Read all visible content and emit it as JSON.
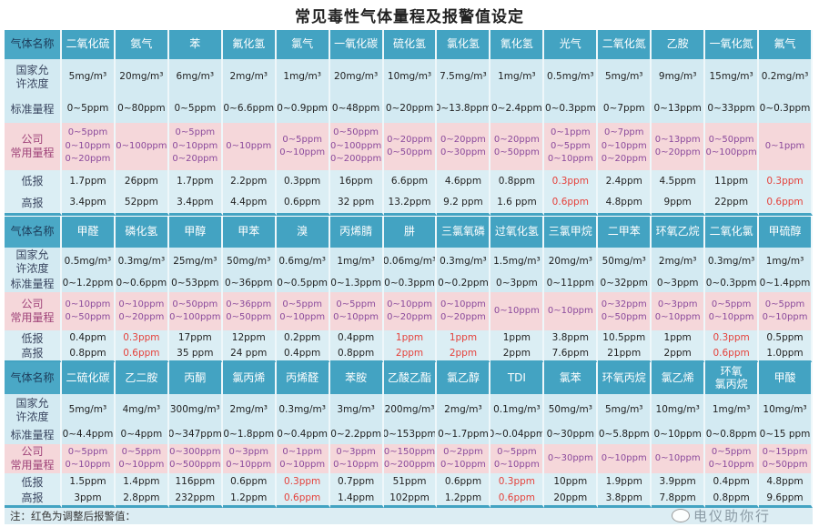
{
  "title": "常见毒性气体量程及报警值设定",
  "row_labels": {
    "name": "气体名称",
    "allowed": "国家允\n许浓度",
    "standard": "标准量程",
    "company": "公司\n常用量程",
    "low": "低报",
    "high": "高报"
  },
  "colors": {
    "header": "#43a3c2",
    "row": "#d3eaf2",
    "company_row": "#f5d7da",
    "company_text": "#8b4a9c",
    "adjusted_alarm": "#e5413b"
  },
  "sections": [
    {
      "gases": [
        {
          "name": "二氧化硫",
          "allowed": "5mg/m³",
          "standard": "0~5ppm",
          "company": [
            "0~5ppm",
            "0~10ppm",
            "0~20ppm"
          ],
          "low": "1.7ppm",
          "high": "3.4ppm",
          "adjusted": false
        },
        {
          "name": "氨气",
          "allowed": "20mg/m³",
          "standard": "0~80ppm",
          "company": [
            "0~100ppm"
          ],
          "low": "26ppm",
          "high": "52ppm",
          "adjusted": false
        },
        {
          "name": "苯",
          "allowed": "6mg/m³",
          "standard": "0~5ppm",
          "company": [
            "0~5ppm",
            "0~10ppm",
            "0~20ppm"
          ],
          "low": "1.7ppm",
          "high": "3.4ppm",
          "adjusted": false
        },
        {
          "name": "氟化氢",
          "allowed": "2mg/m³",
          "standard": "0~6.6ppm",
          "company": [
            "0~10ppm"
          ],
          "low": "2.2ppm",
          "high": "4.4ppm",
          "adjusted": false
        },
        {
          "name": "氯气",
          "allowed": "1mg/m³",
          "standard": "0~0.9ppm",
          "company": [
            "0~5ppm",
            "0~10ppm"
          ],
          "low": "0.3ppm",
          "high": "0.6ppm",
          "adjusted": false
        },
        {
          "name": "一氧化碳",
          "allowed": "20mg/m³",
          "standard": "0~48ppm",
          "company": [
            "0~50ppm",
            "0~100ppm",
            "0~200ppm"
          ],
          "low": "16ppm",
          "high": "32 ppm",
          "adjusted": false
        },
        {
          "name": "硫化氢",
          "allowed": "10mg/m³",
          "standard": "0~20ppm",
          "company": [
            "0~20ppm",
            "0~50ppm"
          ],
          "low": "6.6ppm",
          "high": "13.2ppm",
          "adjusted": false
        },
        {
          "name": "氯化氢",
          "allowed": "7.5mg/m³",
          "standard": "0~13.8ppm",
          "company": [
            "0~20ppm",
            "0~30ppm"
          ],
          "low": "4.6ppm",
          "high": "9.2 ppm",
          "adjusted": false
        },
        {
          "name": "氰化氢",
          "allowed": "1mg/m³",
          "standard": "0~2.4ppm",
          "company": [
            "0~20ppm",
            "0~50ppm"
          ],
          "low": "0.8ppm",
          "high": "1.6 ppm",
          "adjusted": false
        },
        {
          "name": "光气",
          "allowed": "0.5mg/m³",
          "standard": "0~0.3ppm",
          "company": [
            "0~1ppm",
            "0~5ppm",
            "0~10ppm"
          ],
          "low": "0.3ppm",
          "high": "0.6ppm",
          "adjusted": true
        },
        {
          "name": "二氧化氮",
          "allowed": "5mg/m³",
          "standard": "0~7ppm",
          "company": [
            "0~7ppm",
            "0~10ppm",
            "0~20ppm"
          ],
          "low": "2.4ppm",
          "high": "4.8ppm",
          "adjusted": false
        },
        {
          "name": "乙胺",
          "allowed": "9mg/m³",
          "standard": "0~13ppm",
          "company": [
            "0~13ppm",
            "0~20ppm"
          ],
          "low": "4.5ppm",
          "high": "9ppm",
          "adjusted": false
        },
        {
          "name": "一氧化氮",
          "allowed": "15mg/m³",
          "standard": "0~33ppm",
          "company": [
            "0~50ppm",
            "0~100ppm"
          ],
          "low": "11ppm",
          "high": "22ppm",
          "adjusted": false
        },
        {
          "name": "氟气",
          "allowed": "0.2mg/m³",
          "standard": "0~0.3ppm",
          "company": [
            "0~1ppm"
          ],
          "low": "0.3ppm",
          "high": "0.6ppm",
          "adjusted": true
        }
      ]
    },
    {
      "gases": [
        {
          "name": "甲醛",
          "allowed": "0.5mg/m³",
          "standard": "0~1.2ppm",
          "company": [
            "0~10ppm",
            "0~50ppm"
          ],
          "low": "0.4ppm",
          "high": "0.8ppm",
          "adjusted": false
        },
        {
          "name": "磷化氢",
          "allowed": "0.3mg/m³",
          "standard": "0~0.6ppm",
          "company": [
            "0~10ppm",
            "0~20ppm"
          ],
          "low": "0.3ppm",
          "high": "0.6ppm",
          "adjusted": true
        },
        {
          "name": "甲醇",
          "allowed": "25mg/m³",
          "standard": "0~53ppm",
          "company": [
            "0~50ppm",
            "0~100ppm"
          ],
          "low": "17ppm",
          "high": "35 ppm",
          "adjusted": false
        },
        {
          "name": "甲苯",
          "allowed": "50mg/m³",
          "standard": "0~36ppm",
          "company": [
            "0~36ppm",
            "0~50ppm"
          ],
          "low": "12ppm",
          "high": "24 ppm",
          "adjusted": false
        },
        {
          "name": "溴",
          "allowed": "0.6mg/m³",
          "standard": "0~0.5ppm",
          "company": [
            "0~5ppm",
            "0~10ppm"
          ],
          "low": "0.2ppm",
          "high": "0.4ppm",
          "adjusted": false
        },
        {
          "name": "丙烯腈",
          "allowed": "1mg/m³",
          "standard": "0~1.3ppm",
          "company": [
            "0~5ppm",
            "0~10ppm"
          ],
          "low": "0.4ppm",
          "high": "0.8ppm",
          "adjusted": false
        },
        {
          "name": "肼",
          "allowed": "0.06mg/m³",
          "standard": "0~0.3ppm",
          "company": [
            "0~10ppm",
            "0~20ppm"
          ],
          "low": "1ppm",
          "high": "2ppm",
          "adjusted": true
        },
        {
          "name": "三氯氧磷",
          "allowed": "0.3mg/m³",
          "standard": "0~0.2ppm",
          "company": [
            "0~10ppm",
            "0~20ppm"
          ],
          "low": "1ppm",
          "high": "2ppm",
          "adjusted": true
        },
        {
          "name": "过氧化氢",
          "allowed": "1.5mg/m³",
          "standard": "0~3ppm",
          "company": [
            "0~10ppm"
          ],
          "low": "1ppm",
          "high": "2ppm",
          "adjusted": false
        },
        {
          "name": "三氯甲烷",
          "allowed": "20mg/m³",
          "standard": "0~11ppm",
          "company": [
            "0~10ppm"
          ],
          "low": "3.8ppm",
          "high": "7.6ppm",
          "adjusted": false
        },
        {
          "name": "二甲苯",
          "allowed": "50mg/m³",
          "standard": "0~32ppm",
          "company": [
            "0~32ppm",
            "0~50ppm"
          ],
          "low": "10.5ppm",
          "high": "21ppm",
          "adjusted": false
        },
        {
          "name": "环氧乙烷",
          "allowed": "2mg/m³",
          "standard": "0~3ppm",
          "company": [
            "0~3ppm",
            "0~10ppm"
          ],
          "low": "1ppm",
          "high": "2ppm",
          "adjusted": false
        },
        {
          "name": "二氧化氯",
          "allowed": "0.3mg/m³",
          "standard": "0~0.3ppm",
          "company": [
            "0~5ppm",
            "0~10ppm"
          ],
          "low": "0.3ppm",
          "high": "0.6ppm",
          "adjusted": true
        },
        {
          "name": "甲硫醇",
          "allowed": "1mg/m³",
          "standard": "0~1.4ppm",
          "company": [
            "0~5ppm",
            "0~10ppm"
          ],
          "low": "0.5ppm",
          "high": "1.0ppm",
          "adjusted": false
        }
      ]
    },
    {
      "gases": [
        {
          "name": "二硫化碳",
          "allowed": "5mg/m³",
          "standard": "0~4.4ppm",
          "company": [
            "0~5ppm",
            "0~10ppm"
          ],
          "low": "1.5ppm",
          "high": "3ppm",
          "adjusted": false
        },
        {
          "name": "乙二胺",
          "allowed": "4mg/m³",
          "standard": "0~4ppm",
          "company": [
            "0~5ppm",
            "0~10ppm"
          ],
          "low": "1.4ppm",
          "high": "2.8ppm",
          "adjusted": false
        },
        {
          "name": "丙酮",
          "allowed": "300mg/m³",
          "standard": "0~347ppm",
          "company": [
            "0~300ppm",
            "0~500ppm"
          ],
          "low": "116ppm",
          "high": "232ppm",
          "adjusted": false
        },
        {
          "name": "氯丙烯",
          "allowed": "2mg/m³",
          "standard": "0~1.8ppm",
          "company": [
            "0~3ppm",
            "0~10ppm"
          ],
          "low": "0.6ppm",
          "high": "1.2ppm",
          "adjusted": false
        },
        {
          "name": "丙烯醛",
          "allowed": "0.3mg/m³",
          "standard": "0~0.4ppm",
          "company": [
            "0~1ppm",
            "0~10ppm"
          ],
          "low": "0.3ppm",
          "high": "0.6ppm",
          "adjusted": true
        },
        {
          "name": "苯胺",
          "allowed": "3mg/m³",
          "standard": "0~2.2ppm",
          "company": [
            "0~3ppm",
            "0~10ppm"
          ],
          "low": "0.7ppm",
          "high": "1.4ppm",
          "adjusted": false
        },
        {
          "name": "乙酸乙酯",
          "allowed": "200mg/m³",
          "standard": "0~153ppm",
          "company": [
            "0~150ppm",
            "0~200ppm"
          ],
          "low": "51ppm",
          "high": "102ppm",
          "adjusted": false
        },
        {
          "name": "氯乙醇",
          "allowed": "2mg/m³",
          "standard": "0~1.7ppm",
          "company": [
            "0~2ppm",
            "0~10ppm"
          ],
          "low": "0.6ppm",
          "high": "1.2ppm",
          "adjusted": false
        },
        {
          "name": "TDI",
          "allowed": "0.1mg/m³",
          "standard": "0~0.04ppm",
          "company": [
            "0~5ppm",
            "0~10ppm"
          ],
          "low": "0.3ppm",
          "high": "0.6ppm",
          "adjusted": true
        },
        {
          "name": "氯苯",
          "allowed": "50mg/m³",
          "standard": "0~30ppm",
          "company": [
            "0~30ppm"
          ],
          "low": "10ppm",
          "high": "20ppm",
          "adjusted": false
        },
        {
          "name": "环氧丙烷",
          "allowed": "5mg/m³",
          "standard": "0~5.8ppm",
          "company": [
            "0~10ppm"
          ],
          "low": "1.9ppm",
          "high": "3.8ppm",
          "adjusted": false
        },
        {
          "name": "氯乙烯",
          "allowed": "10mg/m³",
          "standard": "0~10ppm",
          "company": [
            "0~10ppm"
          ],
          "low": "3.9ppm",
          "high": "7.8ppm",
          "adjusted": false
        },
        {
          "name": "环氧\n氯丙烷",
          "allowed": "1mg/m³",
          "standard": "0~0.8ppm",
          "company": [
            "0~5ppm",
            "0~10ppm"
          ],
          "low": "0.4ppm",
          "high": "0.8ppm",
          "adjusted": false
        },
        {
          "name": "甲酸",
          "allowed": "10mg/m³",
          "standard": "0~15 ppm",
          "company": [
            "0~15ppm",
            "0~50ppm"
          ],
          "low": "4.8ppm",
          "high": "9.6ppm",
          "adjusted": false
        }
      ]
    }
  ],
  "note": "注：红色为调整后报警值：",
  "watermark": "电仪助你行"
}
